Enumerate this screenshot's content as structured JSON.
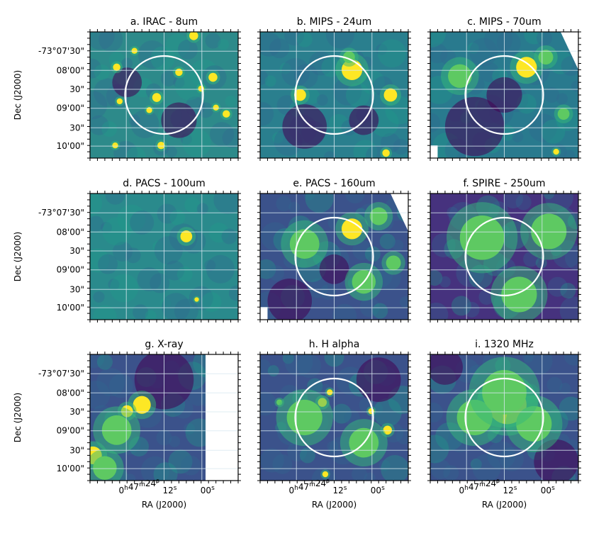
{
  "panels": [
    {
      "title": "a. IRAC - 8um",
      "circle": true,
      "map": "irac"
    },
    {
      "title": "b. MIPS - 24um",
      "circle": true,
      "map": "mips24"
    },
    {
      "title": "c. MIPS - 70um",
      "circle": true,
      "map": "mips70"
    },
    {
      "title": "d. PACS - 100um",
      "circle": false,
      "map": "pacs100"
    },
    {
      "title": "e. PACS - 160um",
      "circle": true,
      "map": "pacs160"
    },
    {
      "title": "f. SPIRE - 250um",
      "circle": true,
      "map": "spire"
    },
    {
      "title": "g. X-ray",
      "circle": false,
      "map": "xray"
    },
    {
      "title": "h. H alpha",
      "circle": true,
      "map": "halpha"
    },
    {
      "title": "i. 1320 MHz",
      "circle": true,
      "map": "radio"
    }
  ],
  "axes": {
    "ylabel": "Dec (J2000)",
    "xlabel": "RA (J2000)",
    "dec_ticks": [
      "-73°07'30\"",
      "08'00\"",
      "30\"",
      "09'00\"",
      "30\"",
      "10'00\""
    ],
    "ra_ticks": {
      "t1_main": "0",
      "t1_h": "h",
      "t1_mid": "47",
      "t1_m": "m",
      "t1_end": "24",
      "t1_s": "s",
      "t2_main": "12",
      "t2_s": "s",
      "t3_main": "00",
      "t3_s": "s"
    }
  },
  "colors": {
    "low": "#440154",
    "mid": "#21918c",
    "high": "#fde725",
    "circle": "#ffffff",
    "grid": "#ffffffaa"
  }
}
